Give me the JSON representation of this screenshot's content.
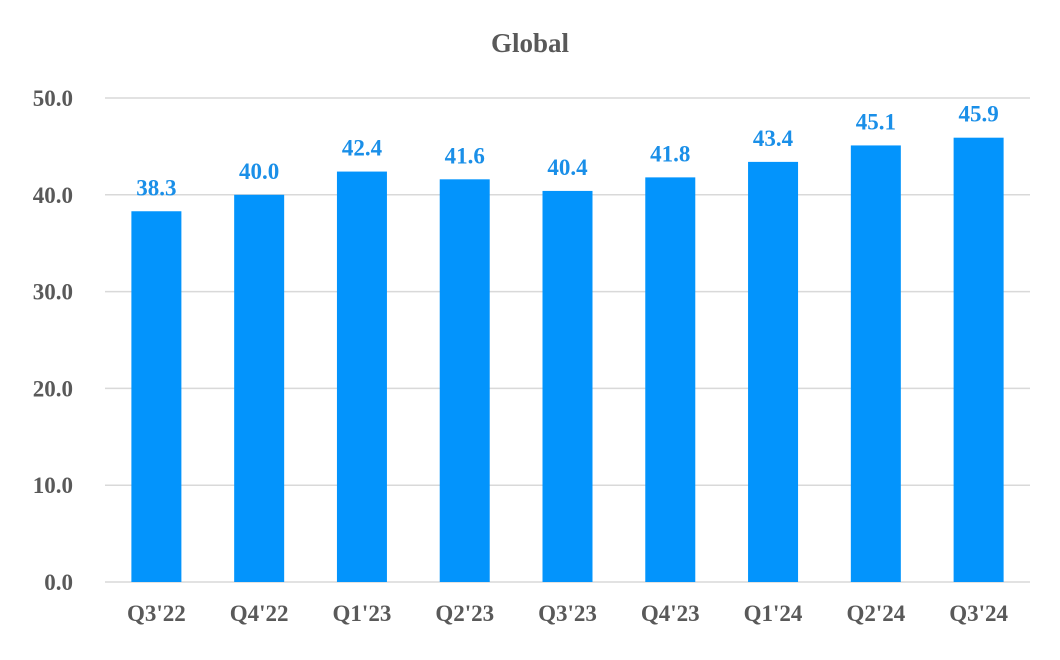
{
  "chart_data": {
    "type": "bar",
    "title": "Global",
    "categories": [
      "Q3'22",
      "Q4'22",
      "Q1'23",
      "Q2'23",
      "Q3'23",
      "Q4'23",
      "Q1'24",
      "Q2'24",
      "Q3'24"
    ],
    "series": [
      {
        "values": [
          38.3,
          40.0,
          42.4,
          41.6,
          40.4,
          41.8,
          43.4,
          45.1,
          45.9
        ]
      }
    ],
    "data_labels": [
      "38.3",
      "40.0",
      "42.4",
      "41.6",
      "40.4",
      "41.8",
      "43.4",
      "45.1",
      "45.9"
    ],
    "y_ticks": [
      0,
      10,
      20,
      30,
      40,
      50
    ],
    "y_tick_labels": [
      "0.0",
      "10.0",
      "20.0",
      "30.0",
      "40.0",
      "50.0"
    ],
    "ylim": [
      0,
      50
    ],
    "xlabel": "",
    "ylabel": "",
    "grid": true,
    "legend": false,
    "colors": {
      "bar": "#0394fc",
      "data_label": "#1a8fe8",
      "grid": "#d9d9d9",
      "text": "#595959"
    }
  }
}
